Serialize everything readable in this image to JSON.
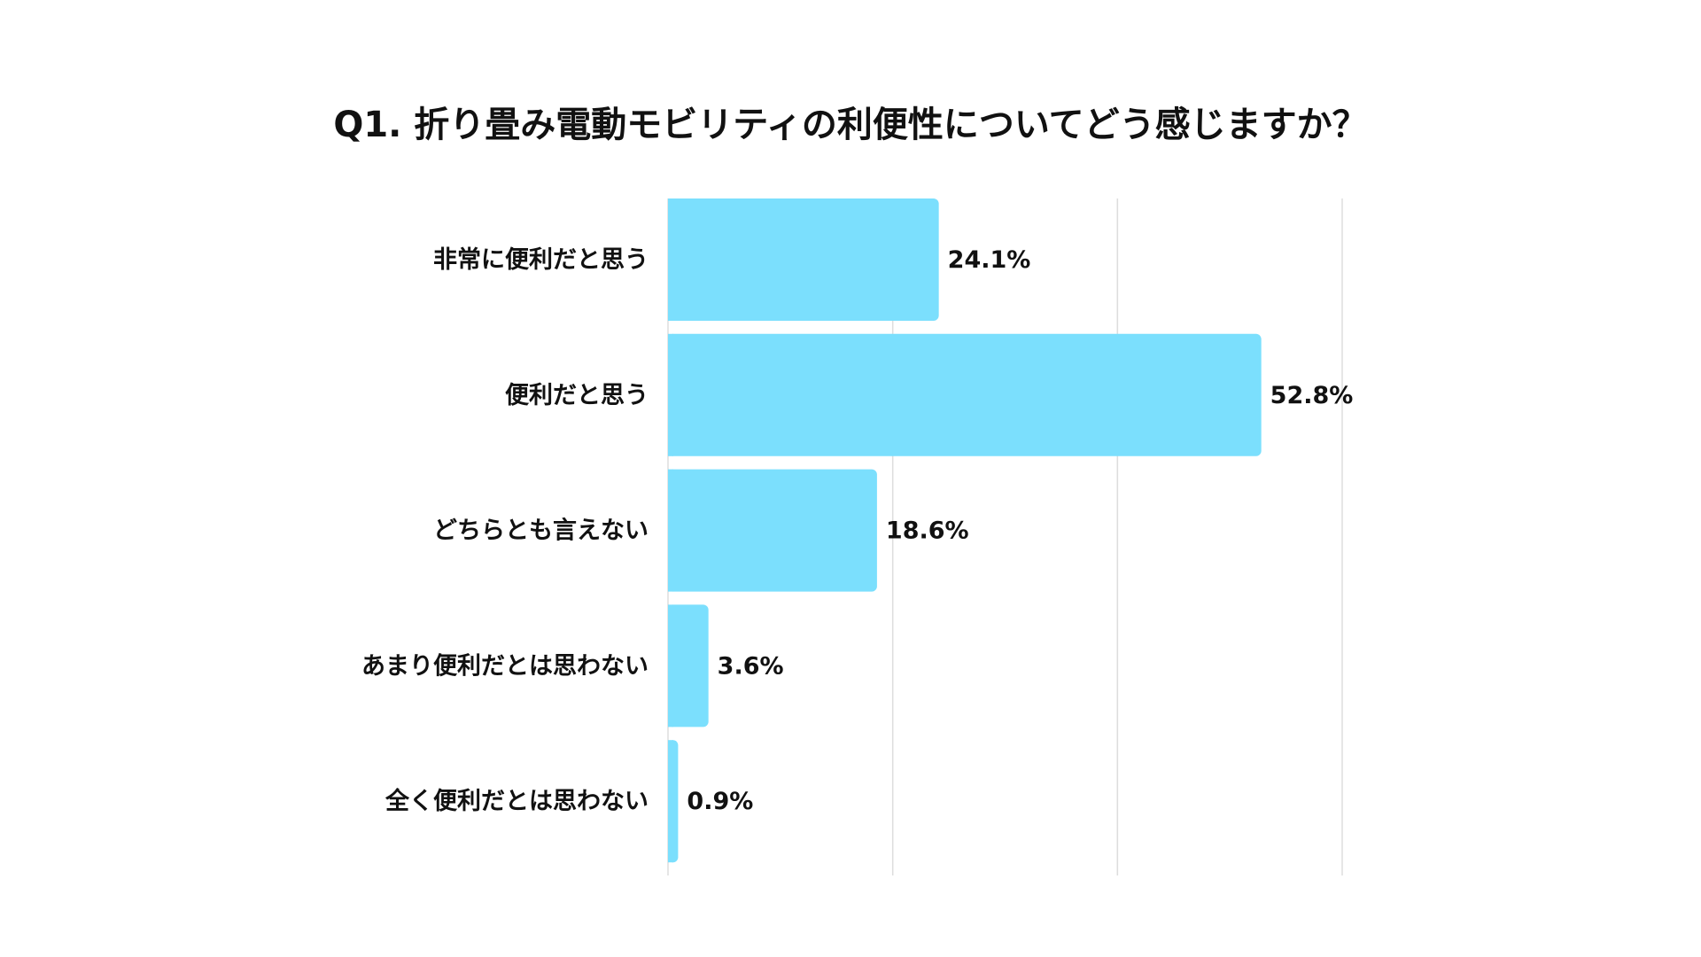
{
  "chart_data": {
    "type": "bar",
    "orientation": "horizontal",
    "title": "Q1. 折り畳み電動モビリティの利便性についてどう感じますか？",
    "categories": [
      "非常に便利だと思う",
      "便利だと思う",
      "どちらとも言えない",
      "あまり便利だとは思わない",
      "全く便利だとは思わない"
    ],
    "values": [
      24.1,
      52.8,
      18.6,
      3.6,
      0.9
    ],
    "data_labels": [
      "24.1%",
      "52.8%",
      "18.6%",
      "3.6%",
      "0.9%"
    ],
    "xlim": [
      0,
      60
    ],
    "gridlines": [
      20,
      40,
      60
    ],
    "grid": true,
    "bar_color": "#7BDFFD",
    "grid_color": "#DDDDDD"
  }
}
